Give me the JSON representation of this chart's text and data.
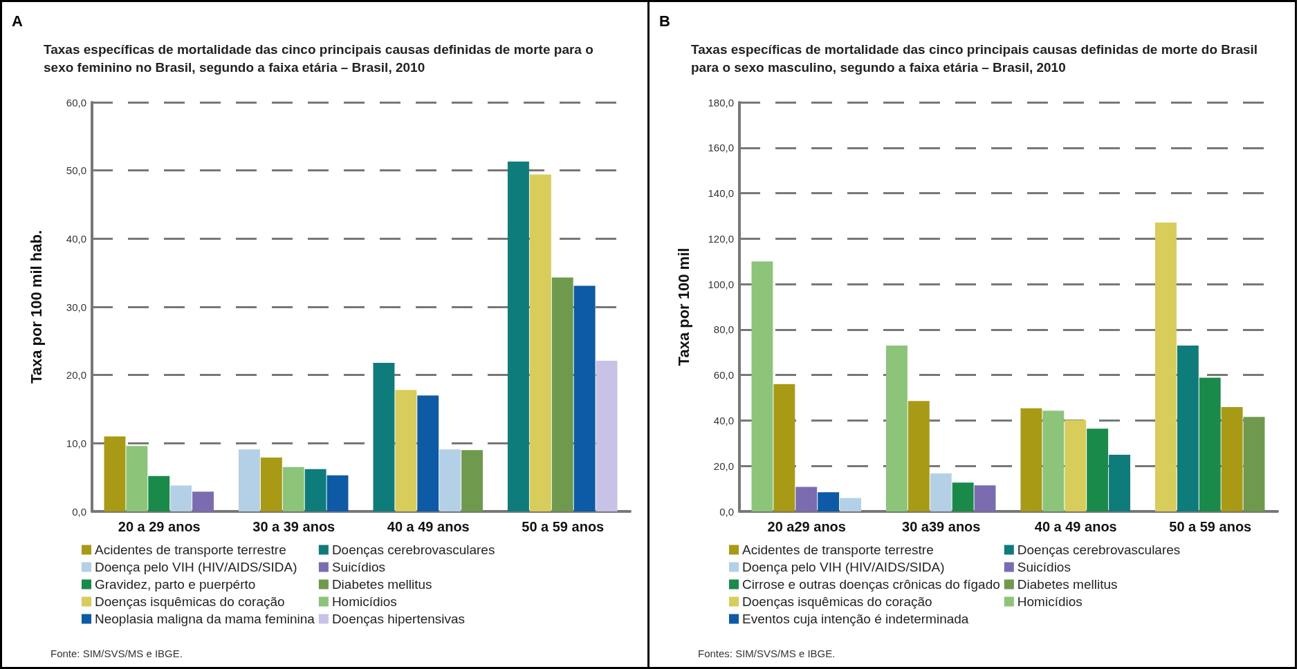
{
  "chart_data": [
    {
      "type": "bar",
      "title": "Taxas específicas de mortalidade das cinco principais causas definidas de morte para o sexo feminino no Brasil, segundo a faixa etária – Brasil, 2010",
      "ylabel": "Taxa por 100 mil hab.",
      "annotations": [
        "A",
        "Fonte: SIM/SVS/MS e IBGE."
      ],
      "categories": [
        "20 a 29 anos",
        "30 a 39 anos",
        "40 a 49 anos",
        "50 a 59 anos"
      ],
      "series": [
        {
          "name": "Acidentes de transporte terrestre",
          "color": "#a89a14",
          "values": [
            11.0,
            7.9,
            null,
            null
          ]
        },
        {
          "name": "Doença pelo VIH (HIV/AIDS/SIDA)",
          "color": "#b4d0e6",
          "values": [
            3.8,
            9.1,
            9.1,
            null
          ]
        },
        {
          "name": "Gravidez, parto e puerpérto",
          "color": "#1a8a4a",
          "values": [
            5.2,
            null,
            null,
            null
          ]
        },
        {
          "name": "Doenças isquêmicas do coração",
          "color": "#d8cc5a",
          "values": [
            null,
            null,
            17.8,
            49.4
          ]
        },
        {
          "name": "Neoplasia maligna da mama feminina",
          "color": "#0d5aa7",
          "values": [
            null,
            5.3,
            17.0,
            33.1
          ]
        },
        {
          "name": "Doenças cerebrovasculares",
          "color": "#0e7c7b",
          "values": [
            null,
            6.2,
            21.8,
            51.3
          ]
        },
        {
          "name": "Suicídios",
          "color": "#7b6bb0",
          "values": [
            2.9,
            null,
            null,
            null
          ]
        },
        {
          "name": "Diabetes mellitus",
          "color": "#6f9a4e",
          "values": [
            null,
            null,
            9.0,
            34.3
          ]
        },
        {
          "name": "Homicídios",
          "color": "#8cc57a",
          "values": [
            9.6,
            6.5,
            null,
            null
          ]
        },
        {
          "name": "Doenças hipertensivas",
          "color": "#c8c2e6",
          "values": [
            null,
            null,
            null,
            22.1
          ]
        }
      ],
      "ylim": [
        0,
        60
      ],
      "yticks": [
        {
          "value": 0,
          "label": "0,0"
        },
        {
          "value": 10,
          "label": "10,0"
        },
        {
          "value": 20,
          "label": "20,0"
        },
        {
          "value": 30,
          "label": "30,0"
        },
        {
          "value": 40,
          "label": "40,0"
        },
        {
          "value": 50,
          "label": "50,0"
        },
        {
          "value": 60,
          "label": "60,0"
        }
      ],
      "grid": "y",
      "legend": "bottom"
    },
    {
      "type": "bar",
      "title": "Taxas específicas de mortalidade das cinco principais causas definidas de morte do Brasil para o sexo masculino, segundo a faixa etária – Brasil, 2010",
      "ylabel": "Taxa por 100 mil",
      "annotations": [
        "B",
        "Fontes: SIM/SVS/MS e IBGE."
      ],
      "categories": [
        "20 a29 anos",
        "30 a39 anos",
        "40 a 49 anos",
        "50 a 59 anos"
      ],
      "series": [
        {
          "name": "Acidentes de transporte terrestre",
          "color": "#a89a14",
          "values": [
            56.0,
            48.6,
            45.4,
            45.9
          ]
        },
        {
          "name": "Doença pelo VIH (HIV/AIDS/SIDA)",
          "color": "#b4d0e6",
          "values": [
            5.9,
            16.7,
            null,
            null
          ]
        },
        {
          "name": "Cirrose e outras doenças crônicas do fígado",
          "color": "#1a8a4a",
          "values": [
            null,
            12.7,
            36.4,
            58.8
          ]
        },
        {
          "name": "Doenças isquêmicas do coração",
          "color": "#d8cc5a",
          "values": [
            null,
            null,
            40.2,
            127.1
          ]
        },
        {
          "name": "Eventos cuja intenção é indeterminada",
          "color": "#0d5aa7",
          "values": [
            8.4,
            null,
            null,
            null
          ]
        },
        {
          "name": "Doenças cerebrovasculares",
          "color": "#0e7c7b",
          "values": [
            null,
            null,
            24.9,
            73.0
          ]
        },
        {
          "name": "Suicídios",
          "color": "#7b6bb0",
          "values": [
            10.8,
            11.5,
            null,
            null
          ]
        },
        {
          "name": "Diabetes mellitus",
          "color": "#6f9a4e",
          "values": [
            null,
            null,
            null,
            41.6
          ]
        },
        {
          "name": "Homicídios",
          "color": "#8cc57a",
          "values": [
            110.0,
            73.0,
            44.3,
            null
          ]
        }
      ],
      "ylim": [
        0,
        180
      ],
      "yticks": [
        {
          "value": 0,
          "label": "0,0"
        },
        {
          "value": 20,
          "label": "20,0"
        },
        {
          "value": 40,
          "label": "40,0"
        },
        {
          "value": 60,
          "label": "60,0"
        },
        {
          "value": 80,
          "label": "80,0"
        },
        {
          "value": 100,
          "label": "100,0"
        },
        {
          "value": 120,
          "label": "120,0"
        },
        {
          "value": 140,
          "label": "140,0"
        },
        {
          "value": 160,
          "label": "160,0"
        },
        {
          "value": 180,
          "label": "180,0"
        }
      ],
      "grid": "y",
      "legend": "bottom"
    }
  ]
}
